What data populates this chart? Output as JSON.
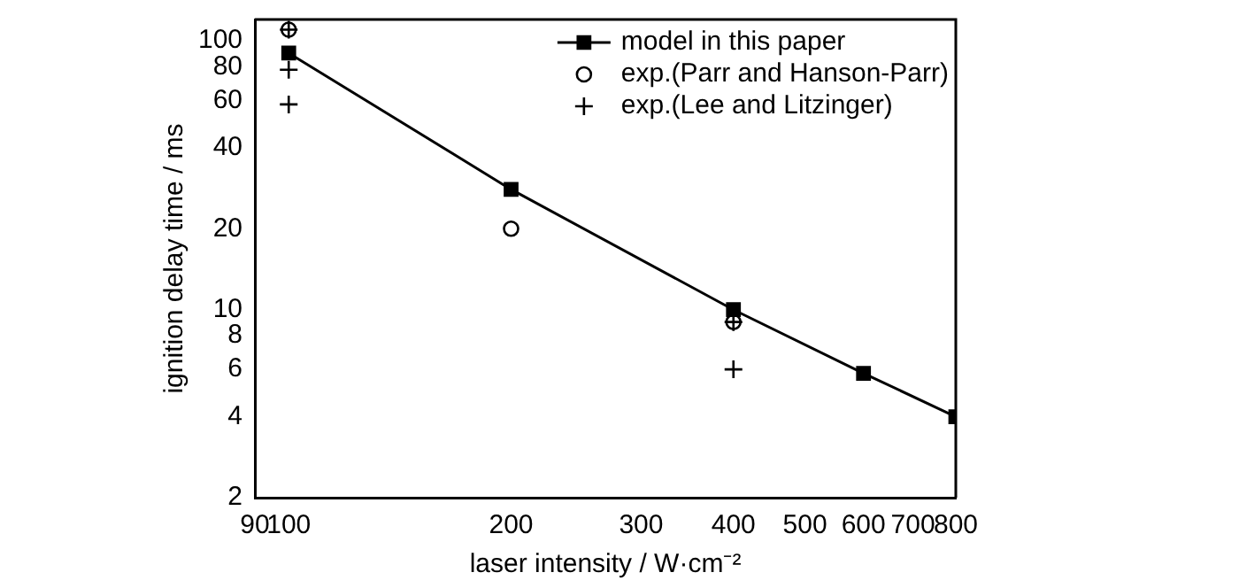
{
  "chart_data": {
    "type": "scatter",
    "xlabel": "laser intensity / W·cm⁻²",
    "ylabel": "ignition delay time / ms",
    "log": "xy",
    "grid": false,
    "legend": "top right",
    "xlim": [
      90,
      800
    ],
    "xticks": [
      90,
      100,
      200,
      300,
      400,
      500,
      600,
      700,
      800
    ],
    "ylim": [
      2,
      120
    ],
    "yticks": [
      2,
      4,
      6,
      8,
      10,
      20,
      40,
      60,
      80,
      100
    ],
    "series": [
      {
        "name": "model in this paper",
        "type": "line",
        "marker": "square",
        "line_style": "solid",
        "color": "#000000",
        "x": [
          100,
          200,
          400,
          600,
          800
        ],
        "values": [
          90,
          28,
          10,
          5.8,
          4
        ]
      },
      {
        "name": "exp.(Parr and Hanson-Parr)",
        "type": "scatter",
        "marker": "circle",
        "color": "#000000",
        "x": [
          100,
          200,
          400
        ],
        "values": [
          110,
          20,
          9
        ]
      },
      {
        "name": "exp.(Lee and Litzinger)",
        "type": "scatter",
        "marker": "cross",
        "color": "#000000",
        "x": [
          100,
          100,
          100,
          400,
          400
        ],
        "values": [
          110,
          78,
          58,
          9,
          6
        ]
      }
    ]
  }
}
